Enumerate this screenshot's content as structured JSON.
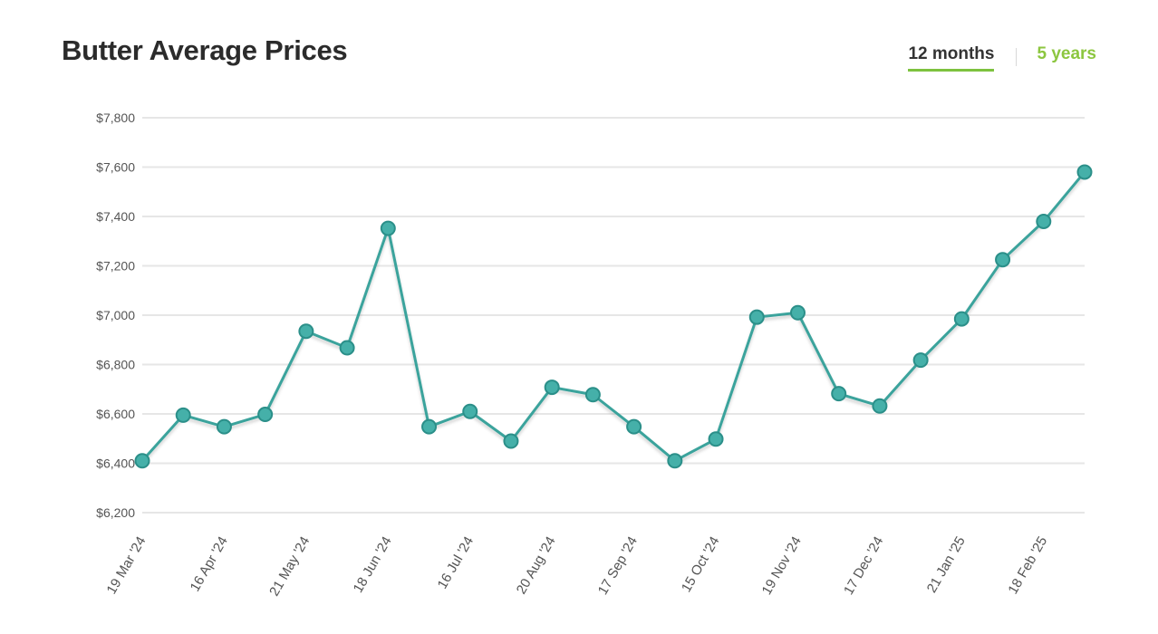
{
  "header": {
    "title": "Butter Average Prices",
    "tabs": [
      {
        "label": "12 months",
        "active": true
      },
      {
        "label": "5 years",
        "active": false
      }
    ]
  },
  "colors": {
    "line": "#3aa39c",
    "marker_fill": "#45b0a9",
    "marker_stroke": "#2b8f89",
    "grid": "#e6e6e6",
    "tab_accent": "#8cc63f"
  },
  "chart_data": {
    "type": "line",
    "title": "Butter Average Prices",
    "xlabel": "",
    "ylabel": "",
    "ylim": [
      6200,
      7800
    ],
    "yticks": [
      6200,
      6400,
      6600,
      6800,
      7000,
      7200,
      7400,
      7600,
      7800
    ],
    "ytick_labels": [
      "$6,200",
      "$6,400",
      "$6,600",
      "$6,800",
      "$7,000",
      "$7,200",
      "$7,400",
      "$7,600",
      "$7,800"
    ],
    "grid": true,
    "legend": false,
    "x_tick_labels": [
      "19 Mar '24",
      "16 Apr '24",
      "21 May '24",
      "18 Jun '24",
      "16 Jul '24",
      "20 Aug '24",
      "17 Sep '24",
      "15 Oct '24",
      "19 Nov '24",
      "17 Dec '24",
      "21 Jan '25",
      "18 Feb '25"
    ],
    "x_tick_label_point_index": [
      0,
      2,
      4,
      6,
      8,
      10,
      12,
      14,
      16,
      18,
      20,
      22
    ],
    "series": [
      {
        "values": [
          6410,
          6595,
          6548,
          6598,
          6935,
          6868,
          7352,
          6548,
          6610,
          6490,
          6708,
          6678,
          6548,
          6410,
          6498,
          6992,
          7010,
          6682,
          6632,
          6818,
          6985,
          7225,
          7380,
          7580
        ]
      }
    ]
  }
}
